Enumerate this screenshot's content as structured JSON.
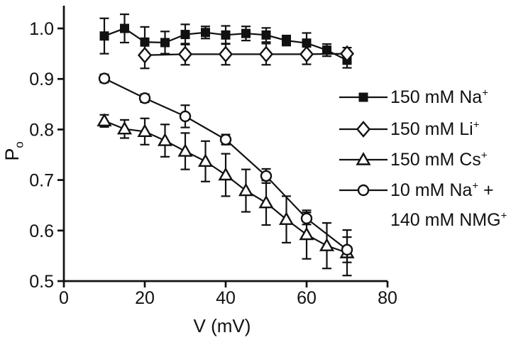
{
  "figure": {
    "background": "#ffffff",
    "ink_color": "#111111"
  },
  "chart_data": {
    "type": "line",
    "title": "",
    "xlabel": "V (mV)",
    "ylabel_parts": [
      {
        "t": "P"
      },
      {
        "t": "o",
        "sub": true
      }
    ],
    "xlim": [
      0,
      80
    ],
    "ylim": [
      0.5,
      1.045
    ],
    "x_ticks": [
      0,
      20,
      40,
      60,
      80
    ],
    "x_tick_labels": [
      "0",
      "20",
      "40",
      "60",
      "80"
    ],
    "y_ticks": [
      0.5,
      0.6,
      0.7,
      0.8,
      0.9,
      1.0
    ],
    "y_tick_labels": [
      "0.5",
      "0.6",
      "0.7",
      "0.8",
      "0.9",
      "1.0"
    ],
    "grid": false,
    "legend_position": "right",
    "error_bars": true,
    "series": [
      {
        "id": "na",
        "name": "150 mM Na+",
        "marker": "square-filled",
        "x": [
          10,
          15,
          20,
          25,
          30,
          35,
          40,
          45,
          50,
          55,
          60,
          65,
          70
        ],
        "y": [
          0.985,
          1.0,
          0.973,
          0.972,
          0.988,
          0.992,
          0.987,
          0.99,
          0.987,
          0.976,
          0.971,
          0.957,
          0.937
        ],
        "err": [
          0.035,
          0.028,
          0.03,
          0.022,
          0.02,
          0.012,
          0.018,
          0.014,
          0.014,
          0.01,
          0.02,
          0.012,
          0.015
        ]
      },
      {
        "id": "li",
        "name": "150 mM Li+",
        "marker": "diamond-open",
        "x": [
          20,
          30,
          40,
          50,
          60,
          70
        ],
        "y": [
          0.947,
          0.949,
          0.949,
          0.949,
          0.949,
          0.95
        ],
        "err": [
          0.026,
          0.021,
          0.021,
          0.021,
          0.02,
          0.012
        ]
      },
      {
        "id": "cs",
        "name": "150 mM Cs+",
        "marker": "triangle-open",
        "x": [
          10,
          15,
          20,
          25,
          30,
          35,
          40,
          45,
          50,
          55,
          60,
          65,
          70
        ],
        "y": [
          0.817,
          0.801,
          0.796,
          0.778,
          0.757,
          0.737,
          0.71,
          0.679,
          0.655,
          0.622,
          0.592,
          0.57,
          0.556
        ],
        "err": [
          0.012,
          0.018,
          0.026,
          0.032,
          0.036,
          0.04,
          0.042,
          0.042,
          0.044,
          0.046,
          0.048,
          0.045,
          0.045
        ]
      },
      {
        "id": "nmg",
        "name": "10 mM Na+ + 140 mM NMG+",
        "marker": "circle-open",
        "x": [
          10,
          20,
          30,
          40,
          50,
          60,
          70
        ],
        "y": [
          0.901,
          0.862,
          0.826,
          0.78,
          0.708,
          0.624,
          0.562
        ],
        "err": [
          0.008,
          0.008,
          0.022,
          0.01,
          0.014,
          0.012,
          0.025
        ]
      }
    ],
    "legend": [
      {
        "id": "na",
        "marker": "square-filled",
        "lines": [
          [
            {
              "t": "150 mM Na"
            },
            {
              "t": "+",
              "sup": true
            }
          ]
        ]
      },
      {
        "id": "li",
        "marker": "diamond-open",
        "lines": [
          [
            {
              "t": "150 mM Li"
            },
            {
              "t": "+",
              "sup": true
            }
          ]
        ]
      },
      {
        "id": "cs",
        "marker": "triangle-open",
        "lines": [
          [
            {
              "t": "150 mM Cs"
            },
            {
              "t": "+",
              "sup": true
            }
          ]
        ]
      },
      {
        "id": "nmg",
        "marker": "circle-open",
        "lines": [
          [
            {
              "t": "10 mM Na"
            },
            {
              "t": "+",
              "sup": true
            },
            {
              "t": " +"
            }
          ],
          [
            {
              "t": "140 mM NMG"
            },
            {
              "t": "+",
              "sup": true
            }
          ]
        ]
      }
    ]
  }
}
